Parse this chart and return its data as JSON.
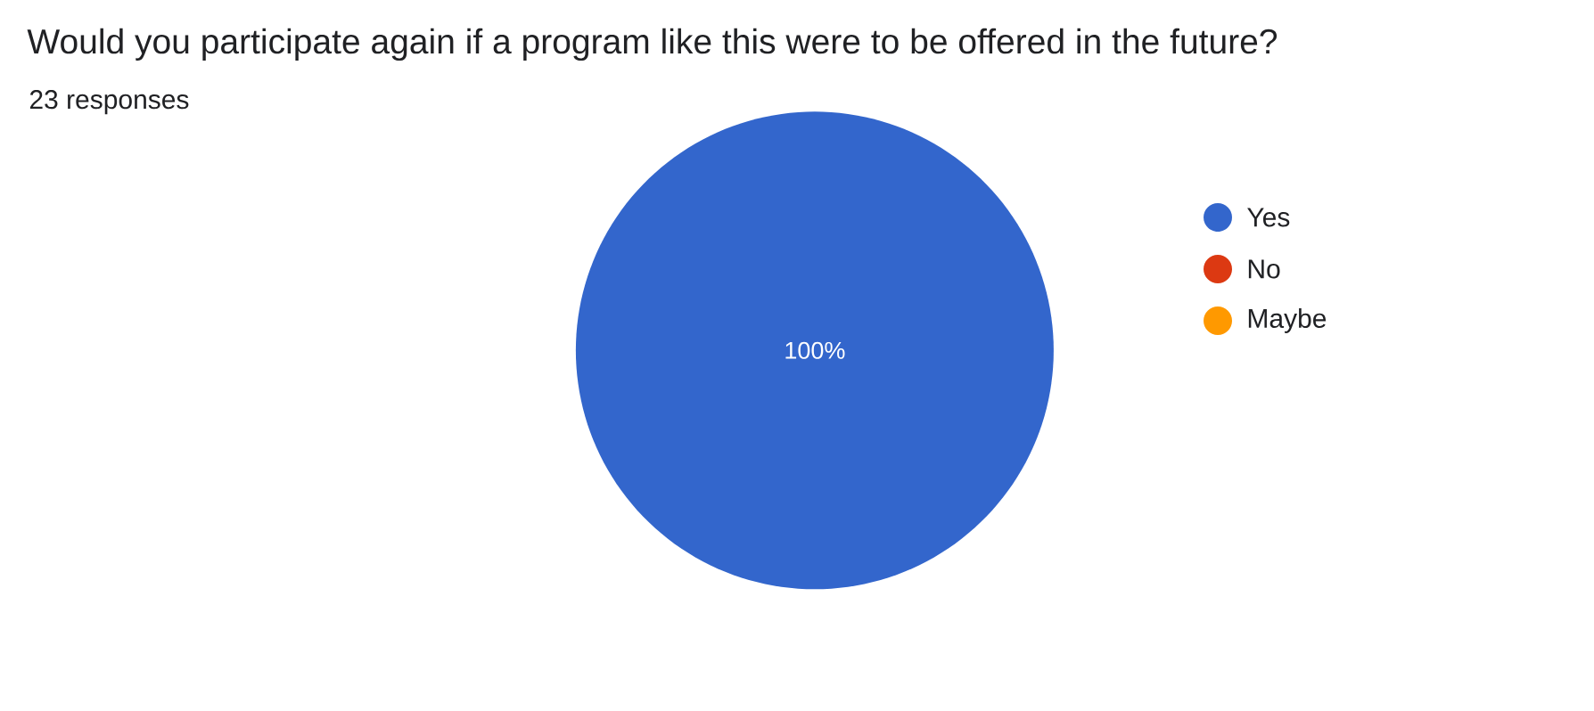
{
  "chart_data": {
    "type": "pie",
    "title": "Would you participate again if a program like this were to be offered in the future?",
    "subtitle": "23 responses",
    "categories": [
      "Yes",
      "No",
      "Maybe"
    ],
    "values": [
      100,
      0,
      0
    ],
    "colors": [
      "#3366cc",
      "#dc3912",
      "#ff9900"
    ],
    "value_labels": [
      "100%",
      null,
      null
    ],
    "legend": "top right"
  }
}
